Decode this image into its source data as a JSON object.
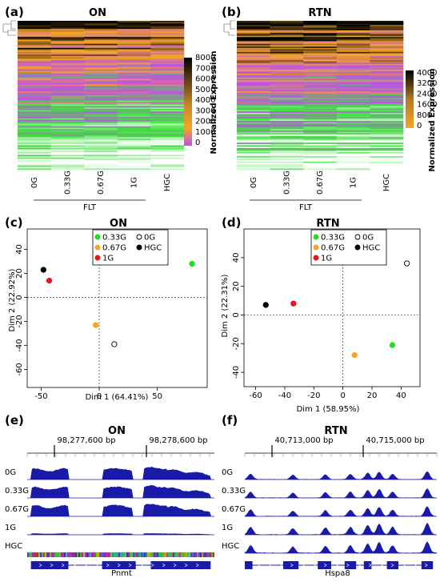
{
  "panels": {
    "a": {
      "label": "(a)",
      "title": "ON"
    },
    "b": {
      "label": "(b)",
      "title": "RTN"
    },
    "c": {
      "label": "(c)",
      "title": "ON"
    },
    "d": {
      "label": "(d)",
      "title": "RTN"
    },
    "e": {
      "label": "(e)",
      "title": "ON"
    },
    "f": {
      "label": "(f)",
      "title": "RTN"
    }
  },
  "chart_data": [
    {
      "type": "heatmap",
      "panel": "a",
      "columns": [
        "0G",
        "0.33G",
        "0.67G",
        "1G",
        "HGC"
      ],
      "group_label": "FLT",
      "legend_title": "Normalized Expression",
      "legend_ticks": [
        "8000",
        "7000",
        "6000",
        "5000",
        "4000",
        "3000",
        "2000",
        "1000",
        "0"
      ],
      "colors": [
        "#000000",
        "#f5a623",
        "#c04fe8",
        "#3de03d",
        "#ffffff"
      ]
    },
    {
      "type": "heatmap",
      "panel": "b",
      "columns": [
        "0G",
        "0.33G",
        "0.67G",
        "1G",
        "HGC"
      ],
      "group_label": "FLT",
      "legend_title": "Normalized Expression",
      "legend_ticks": [
        "4000",
        "3200",
        "2400",
        "1600",
        "800",
        "0"
      ],
      "colors": [
        "#000000",
        "#f5a623",
        "#c04fe8",
        "#3de03d",
        "#ffffff"
      ]
    },
    {
      "type": "scatter",
      "panel": "c",
      "xlabel": "Dim 1 (64.41%)",
      "ylabel": "Dim 2 (22.92%)",
      "xlim": [
        -62,
        93
      ],
      "ylim": [
        -75,
        57
      ],
      "xticks": [
        "-50",
        "0",
        "50"
      ],
      "xtick_values": [
        -50,
        0,
        50
      ],
      "yticks": [
        "-60",
        "-40",
        "-20",
        "0",
        "20",
        "40"
      ],
      "ytick_values": [
        -60,
        -40,
        -20,
        0,
        20,
        40
      ],
      "legend": [
        {
          "name": "0.33G",
          "color": "#22dd22",
          "filled": true
        },
        {
          "name": "0G",
          "color": "#000000",
          "filled": false
        },
        {
          "name": "0.67G",
          "color": "#f5a623",
          "filled": true
        },
        {
          "name": "HGC",
          "color": "#000000",
          "filled": true
        },
        {
          "name": "1G",
          "color": "#e8141e",
          "filled": true
        }
      ],
      "points": [
        {
          "name": "0.33G",
          "x": 80,
          "y": 28
        },
        {
          "name": "0G",
          "x": 13,
          "y": -39
        },
        {
          "name": "0.67G",
          "x": -3,
          "y": -23
        },
        {
          "name": "HGC",
          "x": -48,
          "y": 23
        },
        {
          "name": "1G",
          "x": -43,
          "y": 14
        }
      ]
    },
    {
      "type": "scatter",
      "panel": "d",
      "xlabel": "Dim 1 (58.95%)",
      "ylabel": "Dim 2 (22.31%)",
      "xlim": [
        -68,
        53
      ],
      "ylim": [
        -50,
        60
      ],
      "xticks": [
        "-60",
        "-40",
        "-20",
        "0",
        "20",
        "40"
      ],
      "xtick_values": [
        -60,
        -40,
        -20,
        0,
        20,
        40
      ],
      "yticks": [
        "-40",
        "-20",
        "0",
        "20",
        "40"
      ],
      "ytick_values": [
        -40,
        -20,
        0,
        20,
        40
      ],
      "legend": [
        {
          "name": "0.33G",
          "color": "#22dd22",
          "filled": true
        },
        {
          "name": "0G",
          "color": "#000000",
          "filled": false
        },
        {
          "name": "0.67G",
          "color": "#f5a623",
          "filled": true
        },
        {
          "name": "HGC",
          "color": "#000000",
          "filled": true
        },
        {
          "name": "1G",
          "color": "#e8141e",
          "filled": true
        }
      ],
      "points": [
        {
          "name": "0.33G",
          "x": 34,
          "y": -21
        },
        {
          "name": "0G",
          "x": 44,
          "y": 36
        },
        {
          "name": "0.67G",
          "x": 8,
          "y": -28
        },
        {
          "name": "HGC",
          "x": -53,
          "y": 7
        },
        {
          "name": "1G",
          "x": -34,
          "y": 8
        }
      ]
    }
  ],
  "tracks": {
    "e": {
      "ruler_labels": [
        "98,277,600 bp",
        "98,278,600 bp"
      ],
      "track_labels": [
        "0G",
        "0.33G",
        "0.67G",
        "1G",
        "HGC"
      ],
      "gene": "Pnmt",
      "color": "#1a1aa8"
    },
    "f": {
      "ruler_labels": [
        "40,713,000 bp",
        "40,715,000 bp"
      ],
      "track_labels": [
        "0G",
        "0.33G",
        "0.67G",
        "1G",
        "HGC"
      ],
      "gene": "Hspa8",
      "color": "#1a1aa8"
    }
  }
}
